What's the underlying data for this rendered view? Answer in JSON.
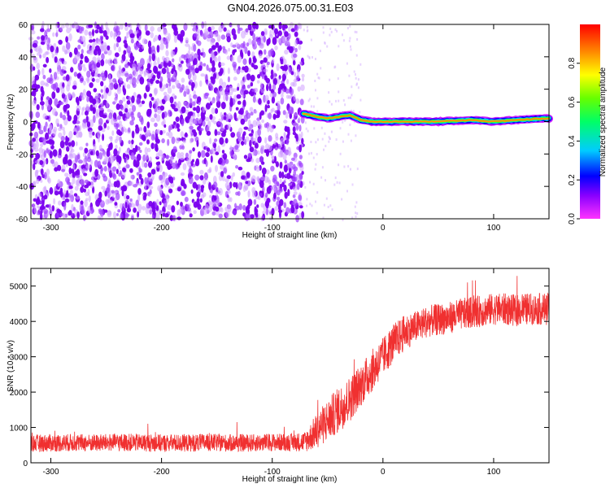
{
  "title": "GN04.2026.075.00.31.E03",
  "chart_data": [
    {
      "type": "heatmap",
      "xlabel": "Height of straight line (km)",
      "ylabel": "Frequency (Hz)",
      "xlim": [
        -318,
        150
      ],
      "ylim": [
        -60,
        60
      ],
      "xticks": [
        -300,
        -200,
        -100,
        0,
        100
      ],
      "yticks": [
        -60,
        -40,
        -20,
        0,
        20,
        40,
        60
      ],
      "colorbar": {
        "label": "Normalized spectral amplitude",
        "range": [
          0,
          1
        ],
        "ticks": [
          0.0,
          0.2,
          0.4,
          0.6,
          0.8
        ],
        "colormap": "rainbow (magenta-blue-cyan-green-yellow-red)"
      },
      "features": [
        {
          "region": "noise",
          "x_range": [
            -318,
            -72
          ],
          "freq_range": [
            -60,
            60
          ],
          "amplitude": "low (0.1-0.3)"
        },
        {
          "region": "signal_line",
          "x_range": [
            -72,
            150
          ],
          "freq_track": [
            [
              -72,
              5
            ],
            [
              -60,
              3
            ],
            [
              -50,
              2
            ],
            [
              -40,
              3
            ],
            [
              -30,
              4
            ],
            [
              -20,
              1
            ],
            [
              -10,
              0
            ],
            [
              0,
              0
            ],
            [
              50,
              0
            ],
            [
              80,
              1
            ],
            [
              100,
              0
            ],
            [
              120,
              1
            ],
            [
              150,
              2
            ]
          ],
          "amplitude": "high (0.5-0.95)"
        }
      ]
    },
    {
      "type": "line",
      "xlabel": "Height of straight line (km)",
      "ylabel": "SNR (10 * v/v)",
      "xlim": [
        -318,
        150
      ],
      "ylim": [
        0,
        5500
      ],
      "xticks": [
        -300,
        -200,
        -100,
        0,
        100
      ],
      "yticks": [
        0,
        1000,
        2000,
        3000,
        4000,
        5000
      ],
      "color": "#f03030",
      "series": [
        {
          "x": [
            -318,
            -300,
            -280,
            -260,
            -240,
            -220,
            -200,
            -180,
            -160,
            -140,
            -120,
            -100,
            -80,
            -70,
            -60,
            -50,
            -40,
            -30,
            -20,
            -10,
            0,
            10,
            20,
            30,
            40,
            50,
            60,
            70,
            80,
            90,
            100,
            110,
            120,
            130,
            140,
            150
          ],
          "y": [
            550,
            560,
            570,
            560,
            580,
            570,
            560,
            560,
            570,
            560,
            560,
            580,
            580,
            600,
            900,
            1200,
            1500,
            1800,
            2200,
            2600,
            3000,
            3400,
            3700,
            3850,
            4000,
            4050,
            4100,
            4200,
            4250,
            4300,
            4350,
            4350,
            4300,
            4350,
            4350,
            4350
          ],
          "spread": [
            250,
            250,
            250,
            250,
            250,
            250,
            250,
            250,
            250,
            250,
            250,
            250,
            250,
            300,
            500,
            600,
            650,
            650,
            600,
            600,
            550,
            550,
            500,
            450,
            450,
            450,
            450,
            450,
            450,
            450,
            450,
            450,
            450,
            450,
            450,
            450
          ]
        }
      ]
    }
  ]
}
